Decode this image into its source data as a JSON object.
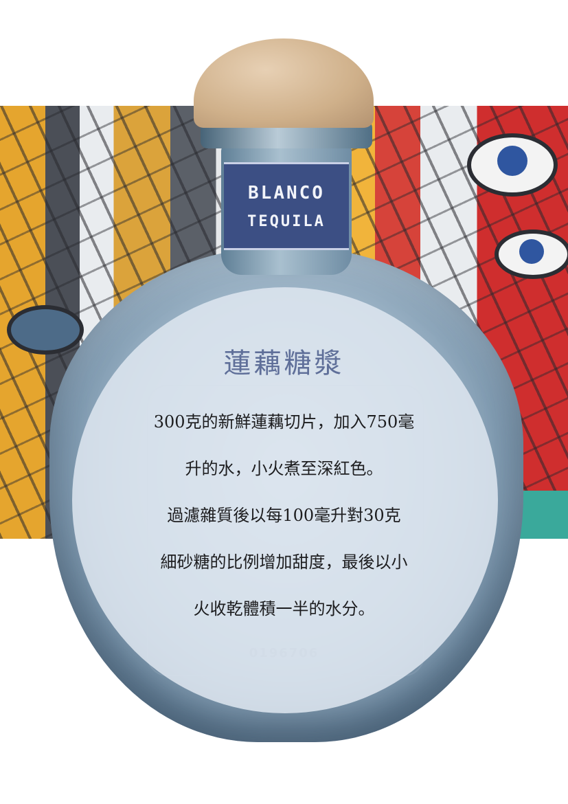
{
  "bottle": {
    "label_line1": "BLANCO",
    "label_line2": "TEQUILA",
    "serial": "0196706"
  },
  "recipe": {
    "title": "蓮藕糖漿",
    "lines": [
      "300克的新鮮蓮藕切片，加入750毫",
      "升的水，小火煮至深紅色。",
      "過濾雜質後以每100毫升對30克",
      "細砂糖的比例增加甜度，最後以小",
      "火收乾體積一半的水分。"
    ]
  },
  "colors": {
    "title": "#5f6f99",
    "text": "#1d1d1f",
    "label_band": "#3c4f84",
    "overlay": "#dee6f0"
  }
}
